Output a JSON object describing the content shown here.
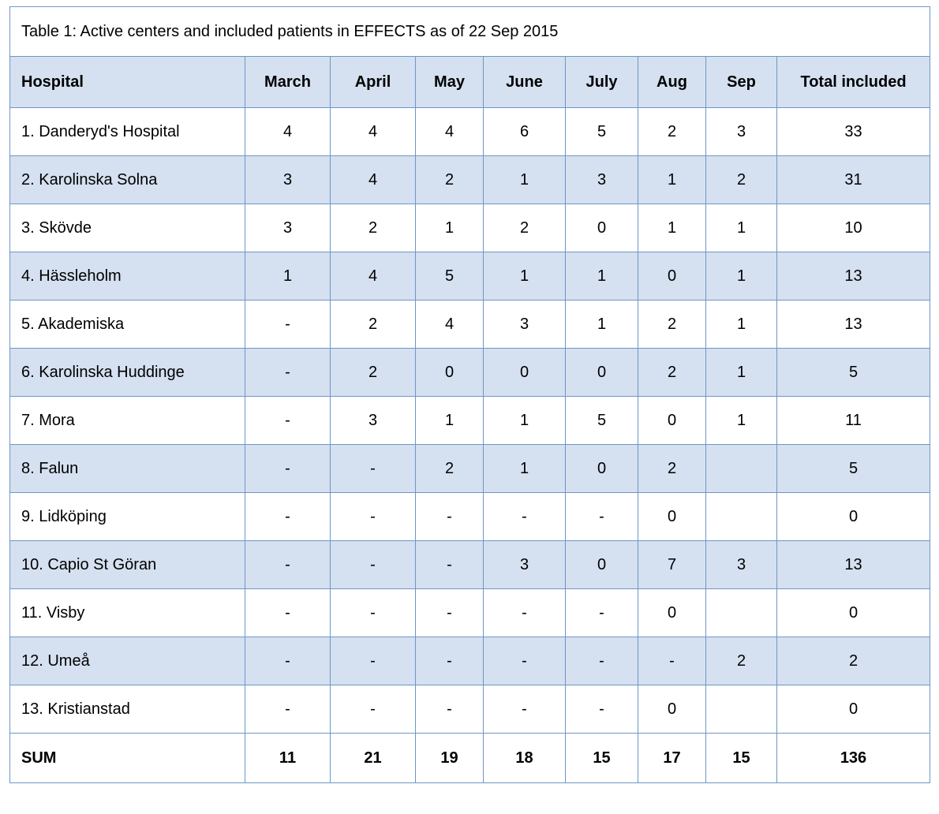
{
  "title": "Table 1: Active centers and included patients in EFFECTS as of 22 Sep 2015",
  "colors": {
    "border": "#6f96c6",
    "shaded_row": "#d5e0f0",
    "background": "#ffffff"
  },
  "headers": [
    "Hospital",
    "March",
    "April",
    "May",
    "June",
    "July",
    "Aug",
    "Sep",
    "Total included"
  ],
  "rows": [
    {
      "hospital": "1. Danderyd's Hospital",
      "values": [
        "4",
        "4",
        "4",
        "6",
        "5",
        "2",
        "3",
        "33"
      ]
    },
    {
      "hospital": "2. Karolinska Solna",
      "values": [
        "3",
        "4",
        "2",
        "1",
        "3",
        "1",
        "2",
        "31"
      ]
    },
    {
      "hospital": "3. Skövde",
      "values": [
        "3",
        "2",
        "1",
        "2",
        "0",
        "1",
        "1",
        "10"
      ]
    },
    {
      "hospital": "4. Hässleholm",
      "values": [
        "1",
        "4",
        "5",
        "1",
        "1",
        "0",
        "1",
        "13"
      ]
    },
    {
      "hospital": "5. Akademiska",
      "values": [
        "-",
        "2",
        "4",
        "3",
        "1",
        "2",
        "1",
        "13"
      ]
    },
    {
      "hospital": "6. Karolinska Huddinge",
      "values": [
        "-",
        "2",
        "0",
        "0",
        "0",
        "2",
        "1",
        "5"
      ]
    },
    {
      "hospital": "7. Mora",
      "values": [
        "-",
        "3",
        "1",
        "1",
        "5",
        "0",
        "1",
        "11"
      ]
    },
    {
      "hospital": "8. Falun",
      "values": [
        "-",
        "-",
        "2",
        "1",
        "0",
        "2",
        "",
        "5"
      ]
    },
    {
      "hospital": "9. Lidköping",
      "values": [
        "-",
        "-",
        "-",
        "-",
        "-",
        "0",
        "",
        "0"
      ]
    },
    {
      "hospital": "10. Capio St Göran",
      "values": [
        "-",
        "-",
        "-",
        "3",
        "0",
        "7",
        "3",
        "13"
      ]
    },
    {
      "hospital": "11. Visby",
      "values": [
        "-",
        "-",
        "-",
        "-",
        "-",
        "0",
        "",
        "0"
      ]
    },
    {
      "hospital": "12. Umeå",
      "values": [
        "-",
        "-",
        "-",
        "-",
        "-",
        "-",
        "2",
        "2"
      ]
    },
    {
      "hospital": "13. Kristianstad",
      "values": [
        "-",
        "-",
        "-",
        "-",
        "-",
        "0",
        "",
        "0"
      ]
    }
  ],
  "sum": {
    "label": "SUM",
    "values": [
      "11",
      "21",
      "19",
      "18",
      "15",
      "17",
      "15",
      "136"
    ]
  }
}
